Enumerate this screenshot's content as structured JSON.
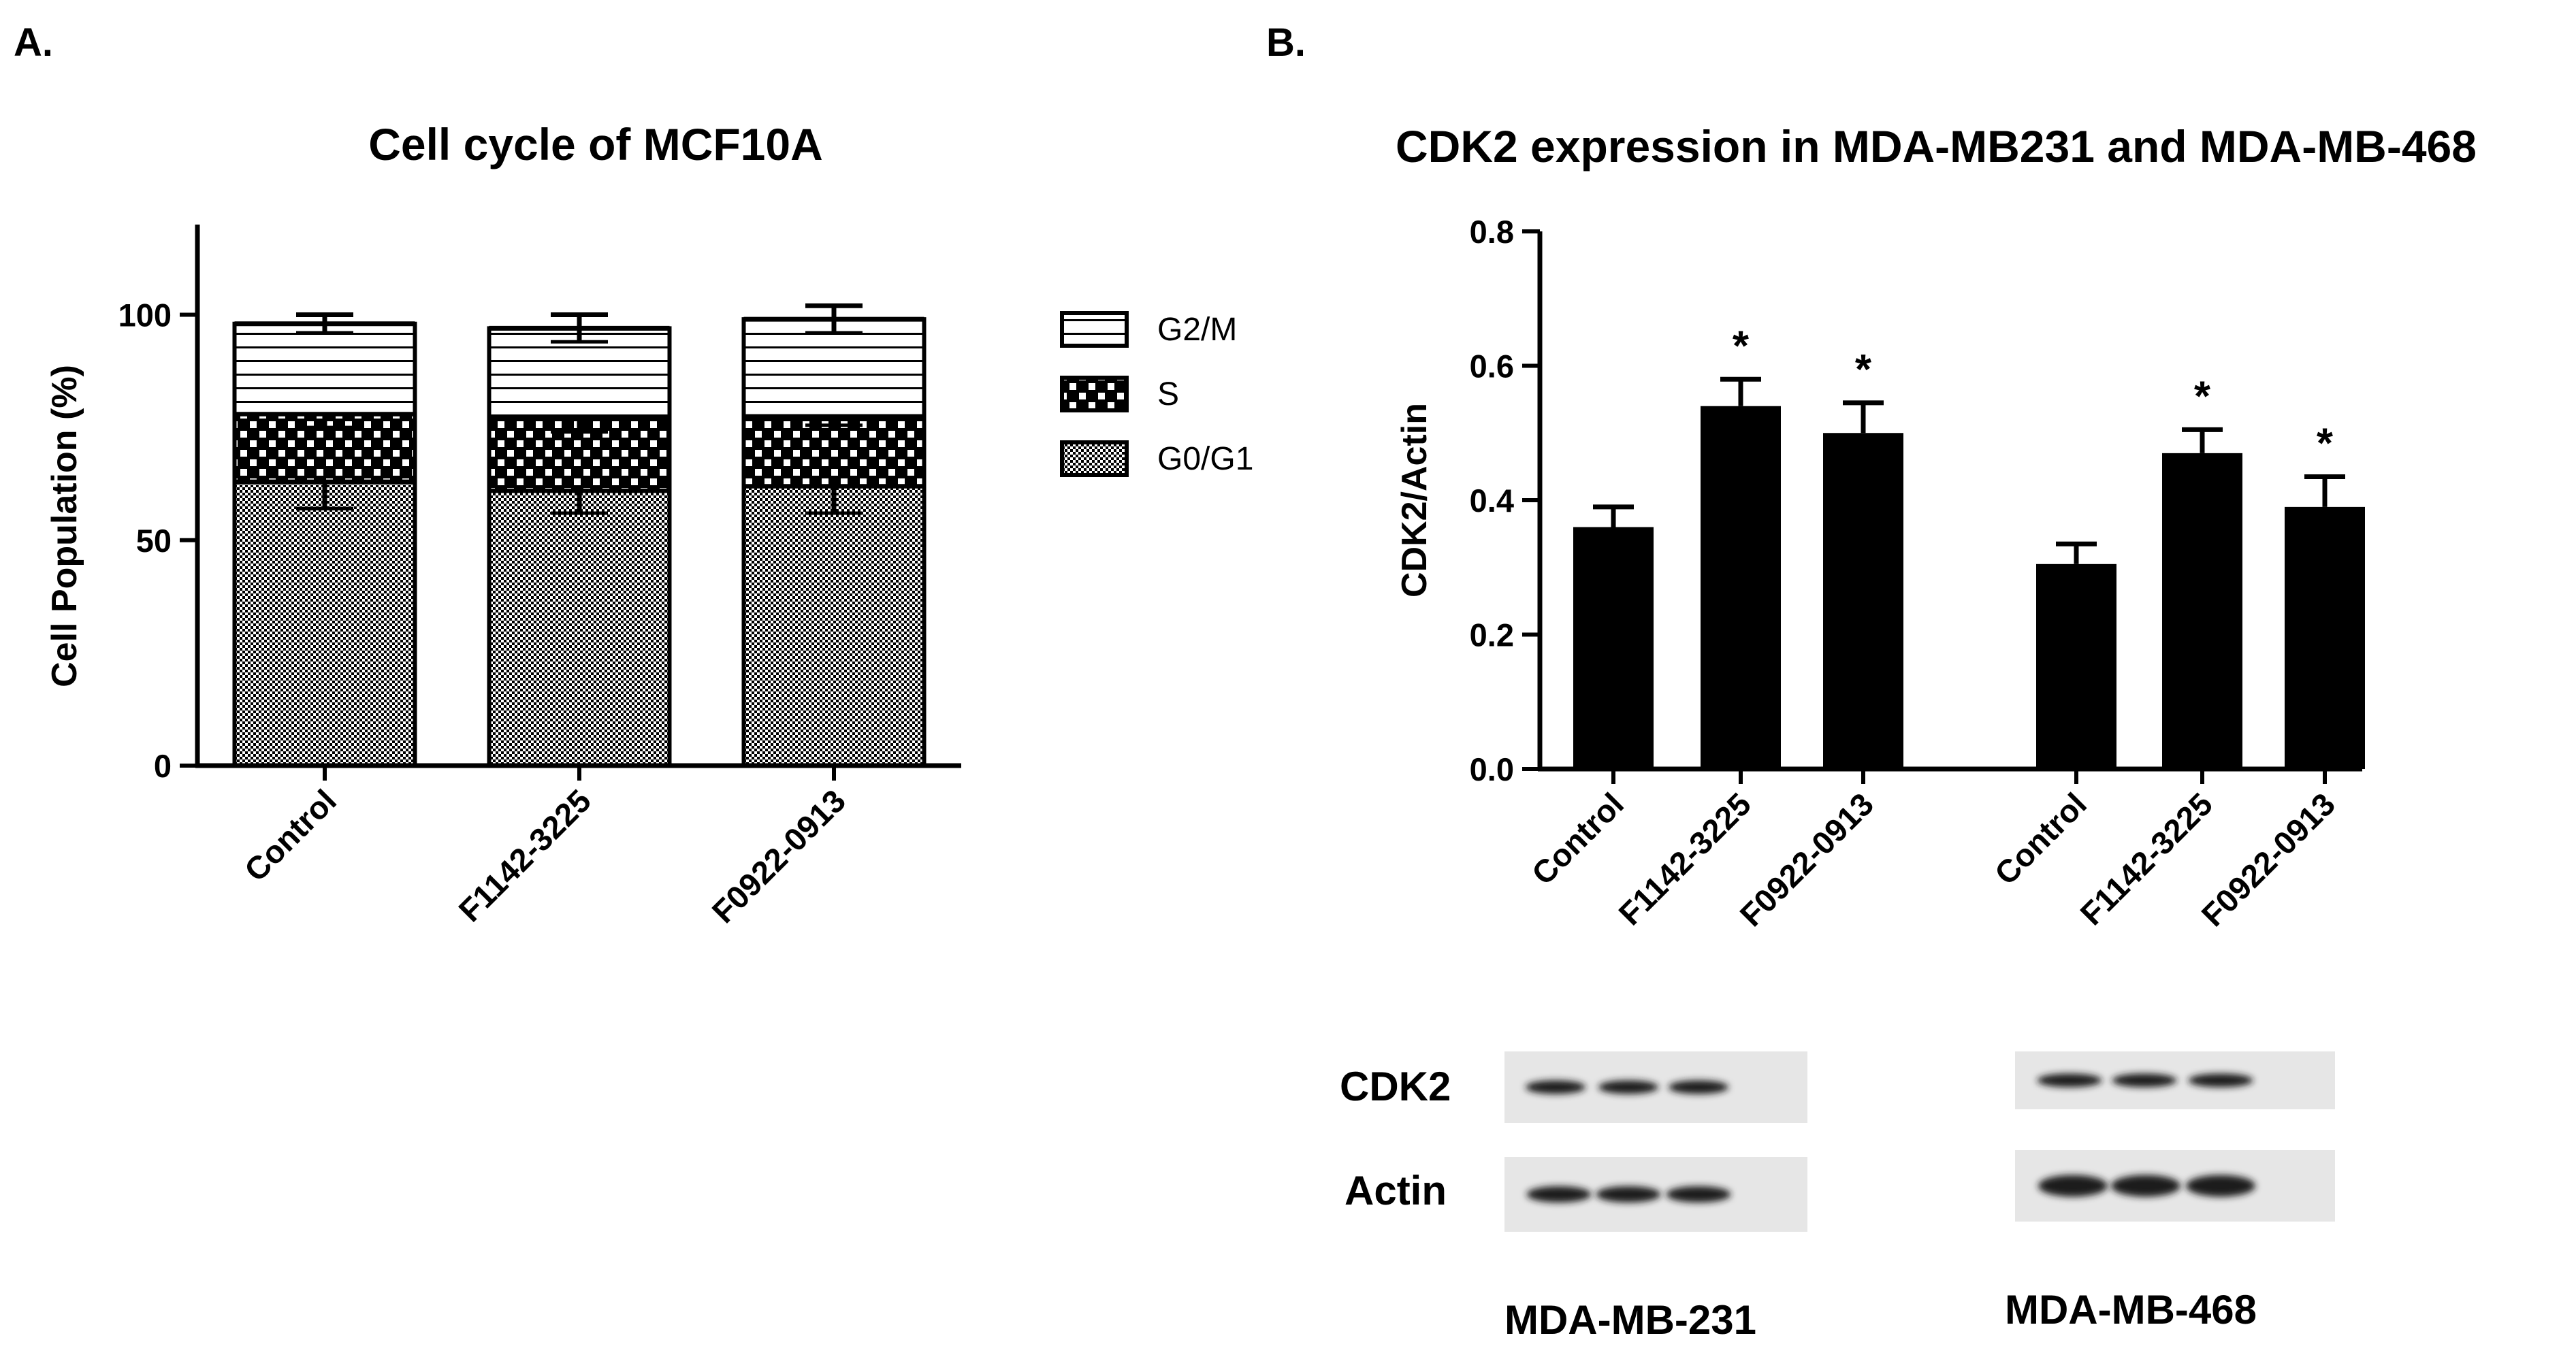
{
  "panels": {
    "a_label": "A.",
    "b_label": "B."
  },
  "colors": {
    "ink": "#000000",
    "background": "#ffffff",
    "blot_background": "#e6e6e6",
    "blot_band": "#1a1a1a"
  },
  "chart_data": [
    {
      "type": "bar",
      "stacked": true,
      "title": "Cell cycle of MCF10A",
      "xlabel": "",
      "ylabel": "Cell Population (%)",
      "ylim": [
        0,
        120
      ],
      "yticks": [
        "0",
        "50",
        "100"
      ],
      "categories": [
        "Control",
        "F1142-3225",
        "F0922-0913"
      ],
      "series": [
        {
          "name": "G0/G1",
          "values": [
            63,
            61,
            62
          ],
          "errors": [
            6,
            5,
            6
          ],
          "pattern": "checker"
        },
        {
          "name": "S",
          "values": [
            15,
            16,
            15.5
          ],
          "errors": [
            3,
            3,
            2
          ],
          "pattern": "cross-dots"
        },
        {
          "name": "G2/M",
          "values": [
            20,
            20,
            21.5
          ],
          "errors": [
            2,
            3,
            3
          ],
          "pattern": "horizontal-lines"
        }
      ],
      "legend": {
        "position": "right",
        "order": [
          "G2/M",
          "S",
          "G0/G1"
        ]
      },
      "grid": false
    },
    {
      "type": "bar",
      "title": "CDK2 expression in MDA-MB231 and MDA-MB-468",
      "xlabel": "",
      "ylabel": "CDK2/Actin",
      "ylim": [
        0,
        0.8
      ],
      "yticks": [
        "0.0",
        "0.2",
        "0.4",
        "0.6",
        "0.8"
      ],
      "groups": [
        "MDA-MB-231",
        "MDA-MB-468"
      ],
      "categories": [
        "Control",
        "F1142-3225",
        "F0922-0913",
        "Control",
        "F1142-3225",
        "F0922-0913"
      ],
      "values": [
        0.36,
        0.54,
        0.5,
        0.305,
        0.47,
        0.39
      ],
      "errors": [
        0.03,
        0.04,
        0.045,
        0.03,
        0.035,
        0.045
      ],
      "annotations": [
        "",
        "*",
        "*",
        "",
        "*",
        "*"
      ],
      "grid": false,
      "legend": "none"
    }
  ],
  "western_blot": {
    "rows": [
      "CDK2",
      "Actin"
    ],
    "cell_lines": [
      "MDA-MB-231",
      "MDA-MB-468"
    ]
  }
}
